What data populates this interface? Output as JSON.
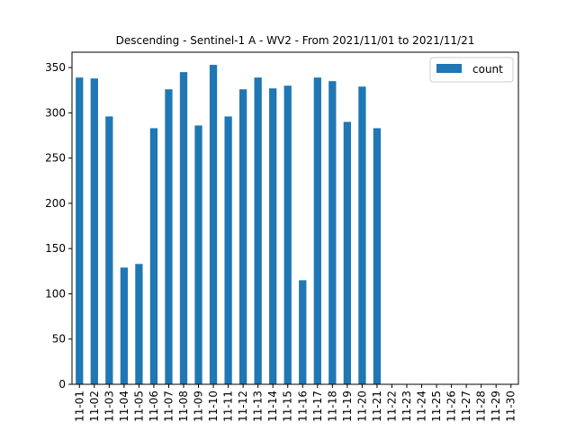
{
  "chart_data": {
    "type": "bar",
    "title": "Descending - Sentinel-1 A - WV2 - From 2021/11/01 to 2021/11/21",
    "xlabel": "",
    "ylabel": "",
    "ylim": [
      0,
      367
    ],
    "yticks": [
      0,
      50,
      100,
      150,
      200,
      250,
      300,
      350
    ],
    "categories": [
      "11-01",
      "11-02",
      "11-03",
      "11-04",
      "11-05",
      "11-06",
      "11-07",
      "11-08",
      "11-09",
      "11-10",
      "11-11",
      "11-12",
      "11-13",
      "11-14",
      "11-15",
      "11-16",
      "11-17",
      "11-18",
      "11-19",
      "11-20",
      "11-21",
      "11-22",
      "11-23",
      "11-24",
      "11-25",
      "11-26",
      "11-27",
      "11-28",
      "11-29",
      "11-30"
    ],
    "series": [
      {
        "name": "count",
        "color": "#1f77b4",
        "values": [
          339,
          338,
          296,
          129,
          133,
          283,
          326,
          345,
          286,
          353,
          296,
          326,
          339,
          327,
          330,
          115,
          339,
          335,
          290,
          329,
          283,
          null,
          null,
          null,
          null,
          null,
          null,
          null,
          null,
          null
        ]
      }
    ],
    "legend": {
      "position": "top-right",
      "entries": [
        "count"
      ]
    },
    "grid": false
  }
}
